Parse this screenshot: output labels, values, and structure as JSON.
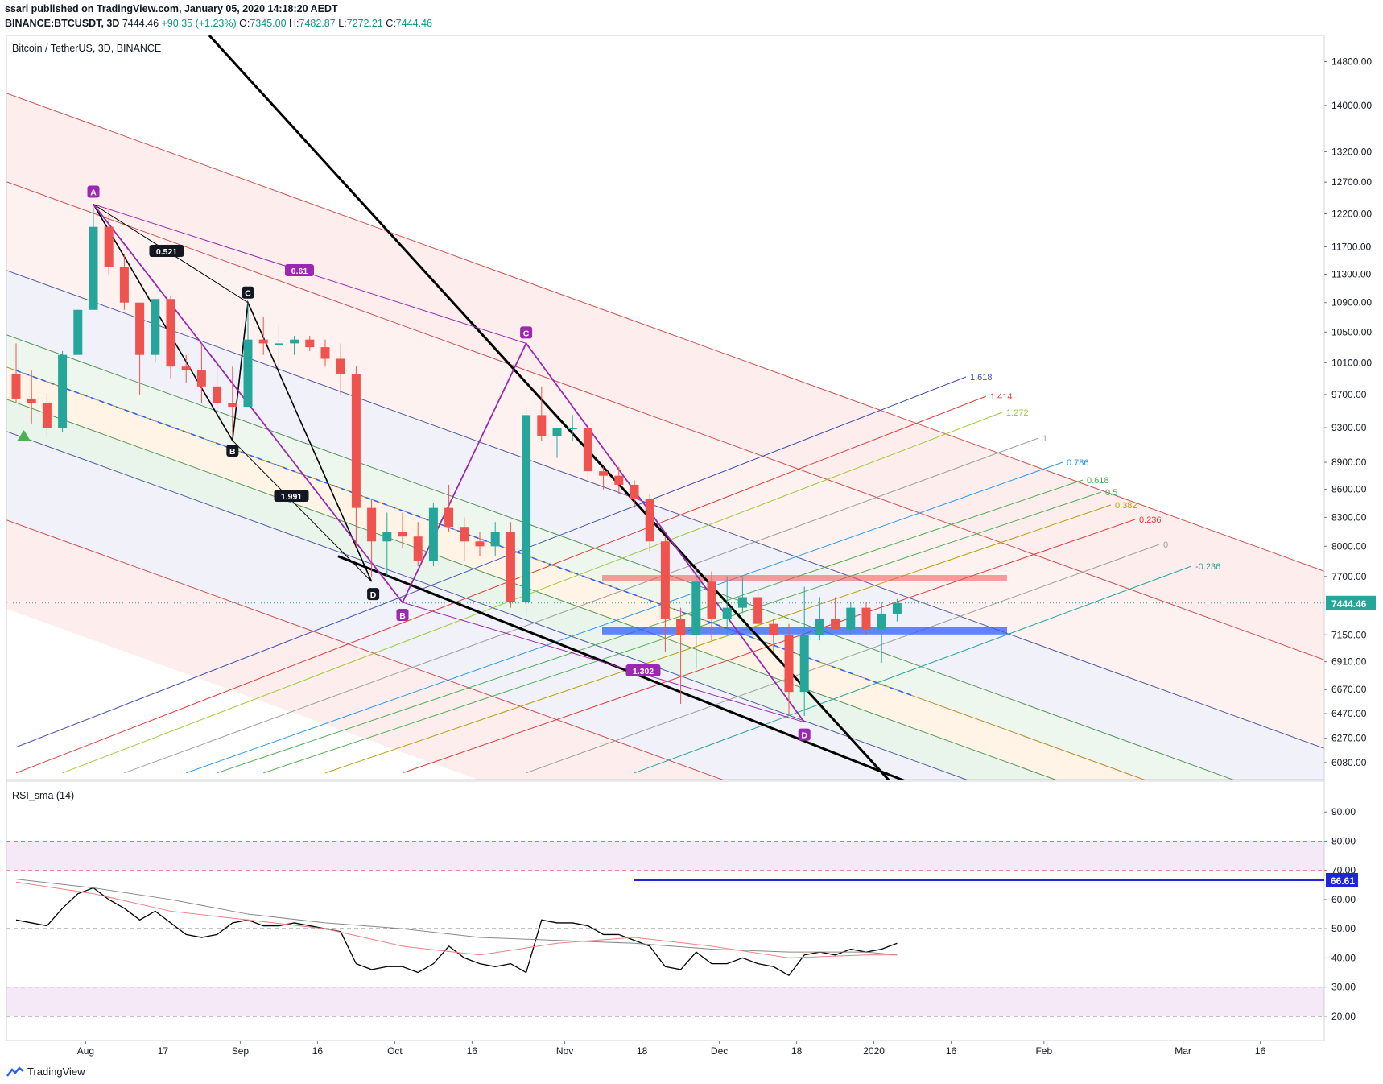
{
  "header": {
    "publish_line": "ssari published on TradingView.com, January 05, 2020 14:18:20 AEDT",
    "symbol": "BINANCE:BTCUSDT, 3D",
    "last": "7444.46",
    "change": "+90.35 (+1.23%)",
    "o_label": "O:",
    "o": "7345.00",
    "h_label": "H:",
    "h": "7482.87",
    "l_label": "L:",
    "l": "7272.21",
    "c_label": "C:",
    "c": "7444.46"
  },
  "chart_title": "Bitcoin / TetherUS, 3D, BINANCE",
  "footer": {
    "brand": "TradingView"
  },
  "colors": {
    "up": "#26a69a",
    "down": "#ef5350",
    "harmonic": "#9c27b0",
    "rsi": "#000000",
    "rsi_ma_gray": "#888888",
    "rsi_ma_red": "#f08080",
    "line_66": "#1d27d6",
    "price_tag": "#26a69a"
  },
  "chart_data": [
    {
      "type": "candlestick",
      "title": "Bitcoin / TetherUS, 3D, BINANCE",
      "y_scale": "log",
      "ylim": [
        5950,
        15300
      ],
      "price_ticks": [
        "14800.00",
        "14000.00",
        "13200.00",
        "12700.00",
        "12200.00",
        "11700.00",
        "11300.00",
        "10900.00",
        "10500.00",
        "10100.00",
        "9700.00",
        "9300.00",
        "8900.00",
        "8600.00",
        "8300.00",
        "8000.00",
        "7700.00",
        "7150.00",
        "6910.00",
        "6670.00",
        "6470.00",
        "6270.00",
        "6080.00"
      ],
      "last_price_label": "7444.46",
      "x_ticks": [
        {
          "label": "Aug",
          "t": 19.5
        },
        {
          "label": "17",
          "t": 24.5
        },
        {
          "label": "Sep",
          "t": 29.5
        },
        {
          "label": "16",
          "t": 34.5
        },
        {
          "label": "Oct",
          "t": 39.5
        },
        {
          "label": "16",
          "t": 44.5
        },
        {
          "label": "Nov",
          "t": 50.5
        },
        {
          "label": "18",
          "t": 55.5
        },
        {
          "label": "Dec",
          "t": 60.5
        },
        {
          "label": "18",
          "t": 65.5
        },
        {
          "label": "2020",
          "t": 70.5
        },
        {
          "label": "16",
          "t": 75.5
        },
        {
          "label": "Feb",
          "t": 81.5
        },
        {
          "label": "Mar",
          "t": 90.5
        },
        {
          "label": "16",
          "t": 95.5
        }
      ],
      "candles": [
        {
          "t": 15,
          "o": 9950,
          "h": 10350,
          "l": 9600,
          "c": 9650
        },
        {
          "t": 16,
          "o": 9650,
          "h": 10000,
          "l": 9350,
          "c": 9600
        },
        {
          "t": 17,
          "o": 9600,
          "h": 9700,
          "l": 9200,
          "c": 9300
        },
        {
          "t": 18,
          "o": 9300,
          "h": 10250,
          "l": 9250,
          "c": 10200
        },
        {
          "t": 19,
          "o": 10200,
          "h": 10800,
          "l": 10200,
          "c": 10800
        },
        {
          "t": 20,
          "o": 10800,
          "h": 12300,
          "l": 10800,
          "c": 12000
        },
        {
          "t": 21,
          "o": 12000,
          "h": 12300,
          "l": 11300,
          "c": 11400
        },
        {
          "t": 22,
          "o": 11400,
          "h": 11600,
          "l": 10800,
          "c": 10900
        },
        {
          "t": 23,
          "o": 10900,
          "h": 10900,
          "l": 9700,
          "c": 10200
        },
        {
          "t": 24,
          "o": 10200,
          "h": 10950,
          "l": 10100,
          "c": 10950
        },
        {
          "t": 25,
          "o": 10950,
          "h": 11000,
          "l": 9900,
          "c": 10050
        },
        {
          "t": 26,
          "o": 10050,
          "h": 10200,
          "l": 9850,
          "c": 10000
        },
        {
          "t": 27,
          "o": 10000,
          "h": 10350,
          "l": 9600,
          "c": 9800
        },
        {
          "t": 28,
          "o": 9800,
          "h": 10050,
          "l": 9500,
          "c": 9600
        },
        {
          "t": 29,
          "o": 9600,
          "h": 10050,
          "l": 9200,
          "c": 9550
        },
        {
          "t": 30,
          "o": 9550,
          "h": 10900,
          "l": 9550,
          "c": 10400
        },
        {
          "t": 31,
          "o": 10400,
          "h": 10700,
          "l": 10200,
          "c": 10350
        },
        {
          "t": 32,
          "o": 10350,
          "h": 10600,
          "l": 9950,
          "c": 10350
        },
        {
          "t": 33,
          "o": 10350,
          "h": 10450,
          "l": 10200,
          "c": 10400
        },
        {
          "t": 34,
          "o": 10400,
          "h": 10450,
          "l": 10250,
          "c": 10300
        },
        {
          "t": 35,
          "o": 10300,
          "h": 10400,
          "l": 10050,
          "c": 10150
        },
        {
          "t": 36,
          "o": 10150,
          "h": 10350,
          "l": 9700,
          "c": 9950
        },
        {
          "t": 37,
          "o": 9950,
          "h": 10050,
          "l": 8000,
          "c": 8400
        },
        {
          "t": 38,
          "o": 8400,
          "h": 8500,
          "l": 7700,
          "c": 8050
        },
        {
          "t": 39,
          "o": 8050,
          "h": 8350,
          "l": 7700,
          "c": 8150
        },
        {
          "t": 40,
          "o": 8150,
          "h": 8350,
          "l": 7980,
          "c": 8100
        },
        {
          "t": 41,
          "o": 8100,
          "h": 8250,
          "l": 7800,
          "c": 7850
        },
        {
          "t": 42,
          "o": 7850,
          "h": 8450,
          "l": 7800,
          "c": 8400
        },
        {
          "t": 43,
          "o": 8400,
          "h": 8650,
          "l": 8150,
          "c": 8200
        },
        {
          "t": 44,
          "o": 8200,
          "h": 8300,
          "l": 7850,
          "c": 8050
        },
        {
          "t": 45,
          "o": 8050,
          "h": 8150,
          "l": 7900,
          "c": 8000
        },
        {
          "t": 46,
          "o": 8000,
          "h": 8250,
          "l": 7900,
          "c": 8150
        },
        {
          "t": 47,
          "o": 8150,
          "h": 8250,
          "l": 7400,
          "c": 7450
        },
        {
          "t": 48,
          "o": 7450,
          "h": 9550,
          "l": 7350,
          "c": 9450
        },
        {
          "t": 49,
          "o": 9450,
          "h": 9800,
          "l": 9150,
          "c": 9200
        },
        {
          "t": 50,
          "o": 9200,
          "h": 9300,
          "l": 8950,
          "c": 9300
        },
        {
          "t": 51,
          "o": 9300,
          "h": 9450,
          "l": 9150,
          "c": 9300
        },
        {
          "t": 52,
          "o": 9300,
          "h": 9350,
          "l": 8700,
          "c": 8800
        },
        {
          "t": 53,
          "o": 8800,
          "h": 8850,
          "l": 8600,
          "c": 8750
        },
        {
          "t": 54,
          "o": 8750,
          "h": 8850,
          "l": 8550,
          "c": 8650
        },
        {
          "t": 55,
          "o": 8650,
          "h": 8700,
          "l": 8400,
          "c": 8500
        },
        {
          "t": 56,
          "o": 8500,
          "h": 8550,
          "l": 7950,
          "c": 8050
        },
        {
          "t": 57,
          "o": 8050,
          "h": 8100,
          "l": 7000,
          "c": 7300
        },
        {
          "t": 58,
          "o": 7300,
          "h": 7400,
          "l": 6550,
          "c": 7150
        },
        {
          "t": 59,
          "o": 7150,
          "h": 7800,
          "l": 6850,
          "c": 7650
        },
        {
          "t": 60,
          "o": 7650,
          "h": 7750,
          "l": 7100,
          "c": 7300
        },
        {
          "t": 61,
          "o": 7300,
          "h": 7700,
          "l": 7150,
          "c": 7400
        },
        {
          "t": 62,
          "o": 7400,
          "h": 7700,
          "l": 7350,
          "c": 7500
        },
        {
          "t": 63,
          "o": 7500,
          "h": 7600,
          "l": 7150,
          "c": 7250
        },
        {
          "t": 64,
          "o": 7250,
          "h": 7300,
          "l": 7000,
          "c": 7150
        },
        {
          "t": 65,
          "o": 7150,
          "h": 7250,
          "l": 6450,
          "c": 6650
        },
        {
          "t": 66,
          "o": 6650,
          "h": 7600,
          "l": 6450,
          "c": 7150
        },
        {
          "t": 67,
          "o": 7150,
          "h": 7500,
          "l": 7100,
          "c": 7300
        },
        {
          "t": 68,
          "o": 7300,
          "h": 7500,
          "l": 7200,
          "c": 7200
        },
        {
          "t": 69,
          "o": 7200,
          "h": 7450,
          "l": 7150,
          "c": 7400
        },
        {
          "t": 70,
          "o": 7400,
          "h": 7450,
          "l": 7150,
          "c": 7200
        },
        {
          "t": 71,
          "o": 7200,
          "h": 7450,
          "l": 6900,
          "c": 7345
        },
        {
          "t": 72,
          "o": 7345,
          "h": 7483,
          "l": 7272,
          "c": 7444
        }
      ],
      "harmonic_labels": [
        "A",
        "B",
        "C",
        "D",
        "0.61",
        "1.302"
      ],
      "abcd_labels": [
        "0.521",
        "1.991",
        "C",
        "B",
        "D"
      ],
      "fib_levels": [
        "1.618",
        "1.414",
        "1.272",
        "1",
        "0.786",
        "0.618",
        "0.5",
        "0.382",
        "0.236",
        "0",
        "-0.236"
      ]
    },
    {
      "type": "line",
      "title": "RSI_sma (14)",
      "ylim": [
        15,
        100
      ],
      "y_ticks": [
        "90.00",
        "80.00",
        "70.00",
        "60.00",
        "50.00",
        "40.00",
        "30.00",
        "20.00"
      ],
      "hlines": [
        80,
        70,
        50,
        30,
        20
      ],
      "marker_value": "66.61",
      "series": [
        {
          "name": "RSI",
          "x": [
            15,
            16,
            17,
            18,
            19,
            20,
            21,
            22,
            23,
            24,
            25,
            26,
            27,
            28,
            29,
            30,
            31,
            32,
            33,
            34,
            35,
            36,
            37,
            38,
            39,
            40,
            41,
            42,
            43,
            44,
            45,
            46,
            47,
            48,
            49,
            50,
            51,
            52,
            53,
            54,
            55,
            56,
            57,
            58,
            59,
            60,
            61,
            62,
            63,
            64,
            65,
            66,
            67,
            68,
            69,
            70,
            71,
            72
          ],
          "values": [
            53,
            52,
            51,
            57,
            62,
            64,
            60,
            57,
            53,
            56,
            52,
            48,
            47,
            48,
            52,
            53,
            51,
            51,
            52,
            51,
            50,
            49,
            38,
            36,
            37,
            37,
            35,
            38,
            44,
            40,
            38,
            37,
            38,
            35,
            53,
            52,
            52,
            51,
            48,
            48,
            46,
            44,
            37,
            36,
            42,
            38,
            38,
            40,
            38,
            37,
            34,
            41,
            42,
            41,
            43,
            42,
            43,
            45
          ]
        },
        {
          "name": "RSI MA (gray)",
          "x": [
            15,
            20,
            25,
            30,
            35,
            40,
            45,
            50,
            55,
            60,
            65,
            70,
            72
          ],
          "values": [
            67,
            64,
            60,
            55,
            52,
            50,
            47,
            46,
            45,
            43,
            42,
            42,
            41
          ]
        },
        {
          "name": "RSI MA (red)",
          "x": [
            15,
            20,
            25,
            30,
            35,
            40,
            45,
            50,
            55,
            60,
            65,
            70,
            72
          ],
          "values": [
            66,
            62,
            56,
            53,
            50,
            44,
            41,
            45,
            47,
            44,
            40,
            41,
            41
          ]
        }
      ]
    }
  ]
}
